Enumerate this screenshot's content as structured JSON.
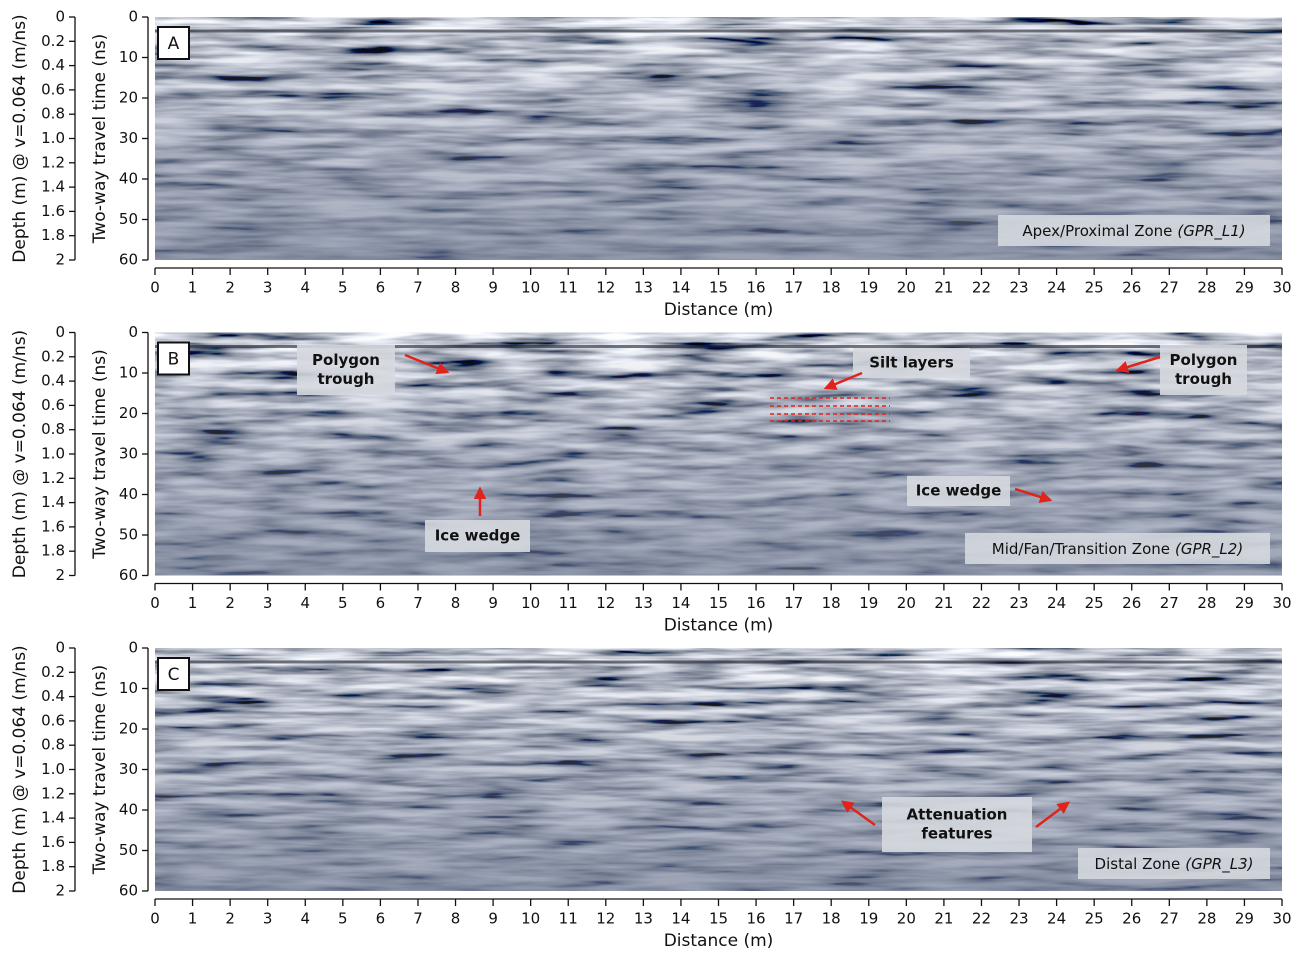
{
  "chart_data": [
    {
      "type": "radargram",
      "panel": "A",
      "zone_label": "Apex/Proximal Zone",
      "zone_id": "(GPR_L1)",
      "xlabel": "Distance (m)",
      "ylabel": "Two-way travel time (ns)",
      "y2label": "Depth (m) @ v=0.064 (m/ns)",
      "xlim": [
        0,
        30
      ],
      "xticks": [
        0,
        1,
        2,
        3,
        4,
        5,
        6,
        7,
        8,
        9,
        10,
        11,
        12,
        13,
        14,
        15,
        16,
        17,
        18,
        19,
        20,
        21,
        22,
        23,
        24,
        25,
        26,
        27,
        28,
        29,
        30
      ],
      "ylim": [
        0,
        60
      ],
      "yticks": [
        0,
        10,
        20,
        30,
        40,
        50,
        60
      ],
      "y2lim": [
        0,
        2
      ],
      "y2ticks": [
        0,
        0.2,
        0.4,
        0.6,
        0.8,
        {
          "value": 1,
          "label": "1.0"
        },
        1.2,
        1.4,
        1.6,
        1.8,
        2
      ],
      "annotations": []
    },
    {
      "type": "radargram",
      "panel": "B",
      "zone_label": "Mid/Fan/Transition Zone",
      "zone_id": "(GPR_L2)",
      "xlabel": "Distance (m)",
      "ylabel": "Two-way travel time (ns)",
      "y2label": "Depth (m) @ v=0.064 (m/ns)",
      "xlim": [
        0,
        30
      ],
      "xticks": [
        0,
        1,
        2,
        3,
        4,
        5,
        6,
        7,
        8,
        9,
        10,
        11,
        12,
        13,
        14,
        15,
        16,
        17,
        18,
        19,
        20,
        21,
        22,
        23,
        24,
        25,
        26,
        27,
        28,
        29,
        30
      ],
      "ylim": [
        0,
        60
      ],
      "yticks": [
        0,
        10,
        20,
        30,
        40,
        50,
        60
      ],
      "y2lim": [
        0,
        2
      ],
      "y2ticks": [
        0,
        0.2,
        0.4,
        0.6,
        0.8,
        {
          "value": 1,
          "label": "1.0"
        },
        1.2,
        1.4,
        1.6,
        1.8,
        2
      ],
      "annotations": [
        [
          "Polygon",
          "trough"
        ],
        [
          "Ice wedge"
        ],
        [
          "Silt layers"
        ],
        [
          "Polygon",
          "trough"
        ],
        [
          "Ice wedge"
        ]
      ]
    },
    {
      "type": "radargram",
      "panel": "C",
      "zone_label": "Distal Zone",
      "zone_id": "(GPR_L3)",
      "xlabel": "Distance (m)",
      "ylabel": "Two-way travel time (ns)",
      "y2label": "Depth (m) @ v=0.064 (m/ns)",
      "xlim": [
        0,
        30
      ],
      "xticks": [
        0,
        1,
        2,
        3,
        4,
        5,
        6,
        7,
        8,
        9,
        10,
        11,
        12,
        13,
        14,
        15,
        16,
        17,
        18,
        19,
        20,
        21,
        22,
        23,
        24,
        25,
        26,
        27,
        28,
        29,
        30
      ],
      "ylim": [
        0,
        60
      ],
      "yticks": [
        0,
        10,
        20,
        30,
        40,
        50,
        60
      ],
      "y2lim": [
        0,
        2
      ],
      "y2ticks": [
        0,
        0.2,
        0.4,
        0.6,
        0.8,
        {
          "value": 1,
          "label": "1.0"
        },
        1.2,
        1.4,
        1.6,
        1.8,
        2
      ],
      "annotations": [
        [
          "Attenuation",
          "features"
        ]
      ]
    }
  ]
}
